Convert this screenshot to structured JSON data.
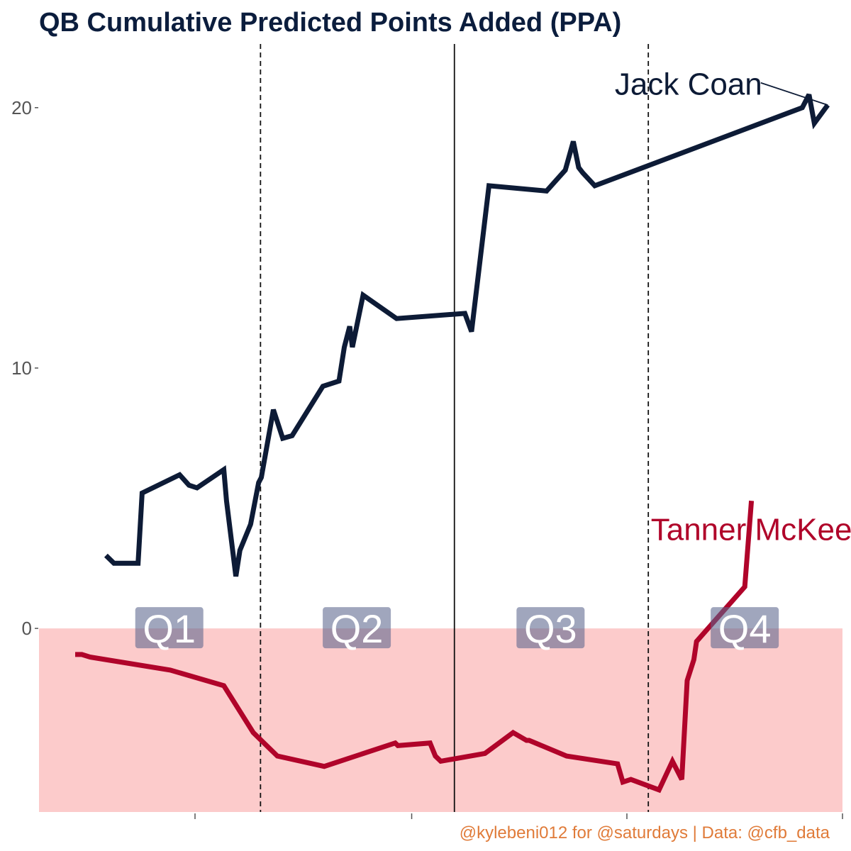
{
  "chart_data": {
    "type": "line",
    "title": "QB Cumulative Predicted Points Added (PPA)",
    "xlabel": "",
    "ylabel": "",
    "ylim": [
      -7.05,
      22.5
    ],
    "xlim": [
      0,
      60
    ],
    "y_ticks": [
      0,
      10,
      20
    ],
    "y_tick_labels": [
      "0",
      "10",
      "20"
    ],
    "x_major_ticks": [
      11.65,
      27.83,
      43.9,
      60
    ],
    "grid": false,
    "shaded_region": {
      "from": 0,
      "to": -7.05,
      "color": "#fccbcb",
      "meaning": "negative PPA"
    },
    "quarter_dividers": [
      16.54,
      31.02,
      45.5
    ],
    "quarter_divider_styles": [
      "dashed",
      "solid",
      "dashed"
    ],
    "quarters": [
      {
        "label": "Q1",
        "x": 9.73,
        "y": 0
      },
      {
        "label": "Q2",
        "x": 23.73,
        "y": 0
      },
      {
        "label": "Q3",
        "x": 38.2,
        "y": 0
      },
      {
        "label": "Q4",
        "x": 52.7,
        "y": 0
      }
    ],
    "series": [
      {
        "name": "Jack Coan",
        "color": "#0d1b36",
        "label_at": {
          "x": 48.5,
          "y": 20.9
        },
        "x": [
          5.0,
          5.6,
          7.4,
          7.7,
          10.5,
          11.2,
          11.8,
          13.8,
          14.0,
          14.7,
          15.0,
          15.8,
          16.4,
          16.6,
          17.5,
          18.2,
          18.9,
          21.2,
          22.4,
          22.8,
          23.2,
          23.4,
          24.2,
          26.7,
          31.8,
          32.3,
          33.6,
          37.9,
          39.3,
          39.9,
          40.3,
          40.6,
          41.5,
          57.0,
          57.5,
          57.9,
          58.9
        ],
        "y": [
          2.8,
          2.5,
          2.5,
          5.2,
          5.9,
          5.5,
          5.4,
          6.1,
          4.9,
          2.0,
          3.0,
          4.0,
          5.6,
          5.8,
          8.4,
          7.3,
          7.4,
          9.3,
          9.5,
          10.8,
          11.6,
          10.8,
          12.8,
          11.9,
          12.1,
          11.4,
          17.0,
          16.8,
          17.6,
          18.7,
          17.7,
          17.5,
          17.0,
          20.0,
          20.5,
          19.4,
          20.1
        ]
      },
      {
        "name": "Tanner McKee",
        "color": "#b0042a",
        "label_at": {
          "x": 53.2,
          "y": 3.8
        },
        "x": [
          2.7,
          3.2,
          3.8,
          9.8,
          13.8,
          16.0,
          17.8,
          21.3,
          26.6,
          26.8,
          29.2,
          29.6,
          30.0,
          33.3,
          35.4,
          36.4,
          36.6,
          39.4,
          43.2,
          43.6,
          44.2,
          46.3,
          47.3,
          48.0,
          48.4,
          48.9,
          49.1,
          52.7,
          53.2
        ],
        "y": [
          -1.0,
          -1.0,
          -1.1,
          -1.6,
          -2.2,
          -4.0,
          -4.9,
          -5.3,
          -4.4,
          -4.5,
          -4.4,
          -4.9,
          -5.1,
          -4.8,
          -4.0,
          -4.3,
          -4.3,
          -4.9,
          -5.2,
          -5.9,
          -5.8,
          -6.2,
          -5.1,
          -5.8,
          -2.0,
          -1.2,
          -0.5,
          1.6,
          4.9
        ]
      }
    ]
  },
  "caption": "@kylebeni012 for @saturdays | Data: @cfb_data"
}
